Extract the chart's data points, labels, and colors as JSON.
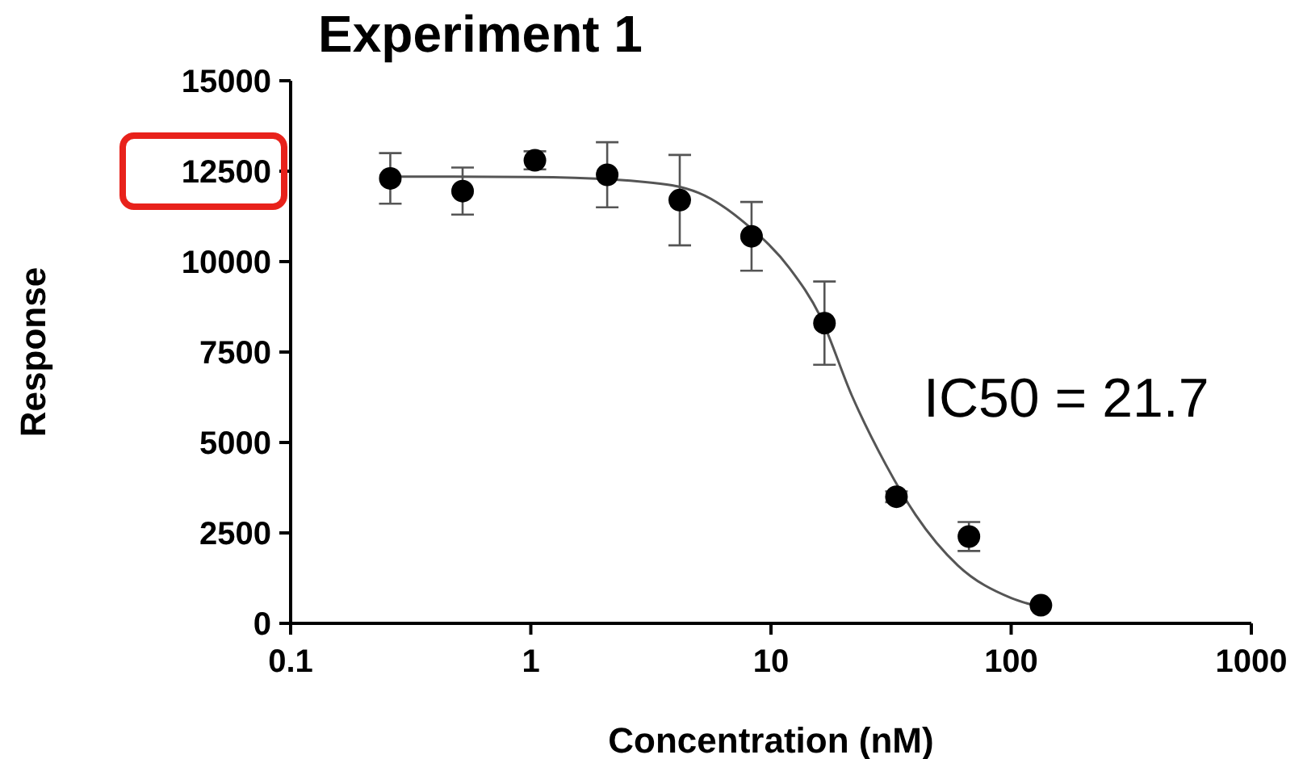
{
  "chart_data": {
    "type": "scatter",
    "title": "Experiment 1",
    "xlabel": "Concentration (nM)",
    "ylabel": "Response",
    "log": "x",
    "xlim": [
      0.1,
      1000
    ],
    "xticks": [
      0.1,
      1,
      10,
      100,
      1000
    ],
    "ylim": [
      0,
      15000
    ],
    "yticks": [
      0,
      2500,
      5000,
      7500,
      10000,
      12500,
      15000
    ],
    "grid": false,
    "annotations": [
      "IC50 = 21.7"
    ],
    "series": [
      {
        "marker": "circle",
        "color": "#000000",
        "x": [
          0.26,
          0.52,
          1.04,
          2.08,
          4.17,
          8.3,
          16.7,
          33.3,
          66.7,
          133
        ],
        "values": [
          12300,
          11950,
          12800,
          12400,
          11700,
          10700,
          8300,
          3500,
          2400,
          500
        ],
        "errors": [
          700,
          650,
          250,
          900,
          1250,
          950,
          1150,
          150,
          400,
          null
        ]
      },
      {
        "type": "line",
        "marker": "none",
        "color": "#555555",
        "x": [
          0.26,
          1,
          3,
          5,
          8,
          12,
          16,
          21.7,
          30,
          40,
          60,
          100,
          133
        ],
        "values": [
          12350,
          12340,
          12200,
          11900,
          11000,
          9800,
          8500,
          6300,
          4400,
          3000,
          1600,
          700,
          450
        ]
      }
    ]
  }
}
